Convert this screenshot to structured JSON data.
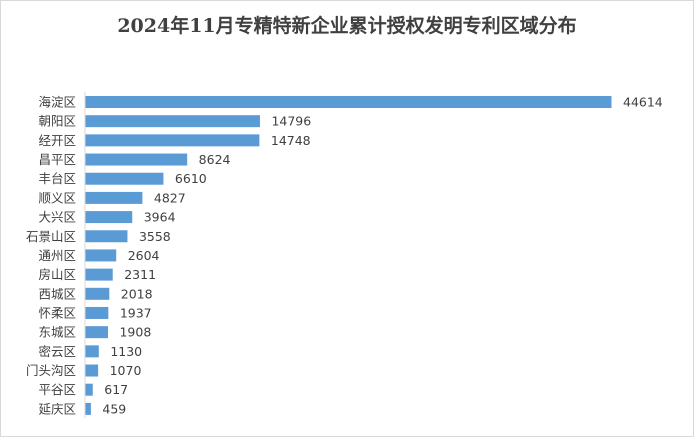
{
  "chart_data": {
    "type": "bar",
    "orientation": "horizontal",
    "title": "2024年11月专精特新企业累计授权发明专利区域分布",
    "categories": [
      "海淀区",
      "朝阳区",
      "经开区",
      "昌平区",
      "丰台区",
      "顺义区",
      "大兴区",
      "石景山区",
      "通州区",
      "房山区",
      "西城区",
      "怀柔区",
      "东城区",
      "密云区",
      "门头沟区",
      "平谷区",
      "延庆区"
    ],
    "values": [
      44614,
      14796,
      14748,
      8624,
      6610,
      4827,
      3964,
      3558,
      2604,
      2311,
      2018,
      1937,
      1908,
      1130,
      1070,
      617,
      459
    ],
    "xlim": [
      0,
      44614
    ],
    "grid": false,
    "data_labels": true,
    "bar_color": "#5b9bd5"
  }
}
